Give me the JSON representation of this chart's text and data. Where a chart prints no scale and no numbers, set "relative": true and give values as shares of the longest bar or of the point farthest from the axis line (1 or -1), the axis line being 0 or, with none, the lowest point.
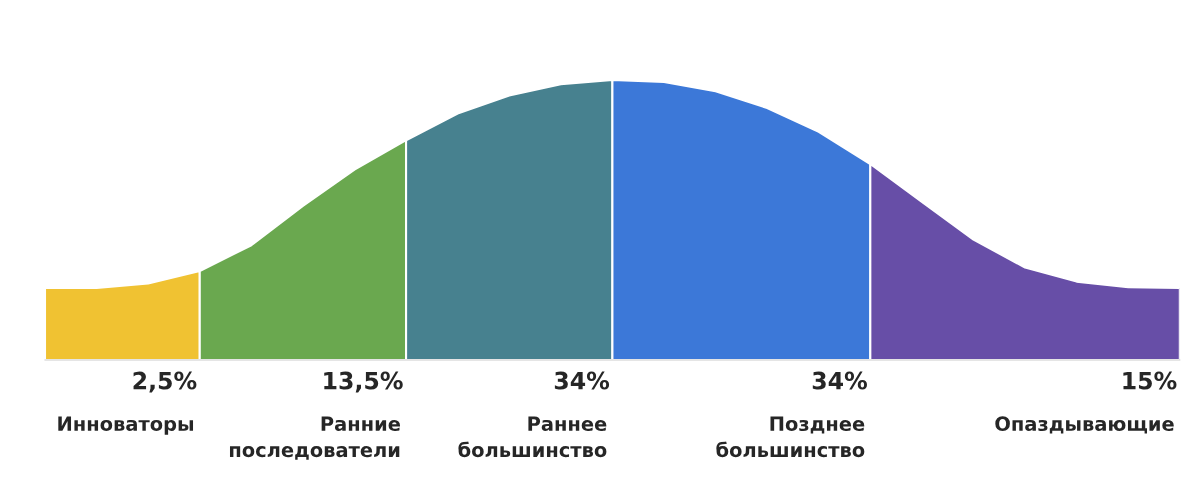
{
  "chart_data": {
    "type": "area",
    "relative": true,
    "categories": [
      null,
      null,
      null,
      null,
      null,
      null,
      null,
      null,
      null,
      null,
      null,
      null,
      null,
      null,
      null,
      null,
      null,
      null,
      null,
      null,
      null,
      null,
      null
    ],
    "series": [
      {
        "name": "Инноваторы",
        "color": "#f0c232",
        "values": [
          0.257,
          0.257,
          0.273,
          0.318,
          null,
          null,
          null,
          null,
          null,
          null,
          null,
          null,
          null,
          null,
          null,
          null,
          null,
          null,
          null,
          null,
          null,
          null,
          null
        ]
      },
      {
        "name": "Ранние последователи",
        "color": "#6aa84f",
        "values": [
          null,
          null,
          null,
          0.318,
          0.41,
          0.55,
          0.68,
          0.785,
          null,
          null,
          null,
          null,
          null,
          null,
          null,
          null,
          null,
          null,
          null,
          null,
          null,
          null,
          null
        ]
      },
      {
        "name": "Раннее большинство",
        "color": "#47818f",
        "values": [
          null,
          null,
          null,
          null,
          null,
          null,
          null,
          0.785,
          0.88,
          0.945,
          0.985,
          1,
          null,
          null,
          null,
          null,
          null,
          null,
          null,
          null,
          null,
          null,
          null
        ]
      },
      {
        "name": "Позднее большинство",
        "color": "#3c78d8",
        "values": [
          null,
          null,
          null,
          null,
          null,
          null,
          null,
          null,
          null,
          null,
          null,
          1,
          0.993,
          0.96,
          0.9,
          0.815,
          0.7,
          null,
          null,
          null,
          null,
          null,
          null
        ]
      },
      {
        "name": "Опаздывающие",
        "color": "#674ea7",
        "values": [
          null,
          null,
          null,
          null,
          null,
          null,
          null,
          null,
          null,
          null,
          null,
          null,
          null,
          null,
          null,
          null,
          0.7,
          0.565,
          0.43,
          0.33,
          0.28,
          0.26,
          0.257
        ]
      }
    ],
    "annotations": [
      "2,5%",
      "13,5%",
      "34%",
      "34%",
      "15%"
    ],
    "legend": false
  }
}
